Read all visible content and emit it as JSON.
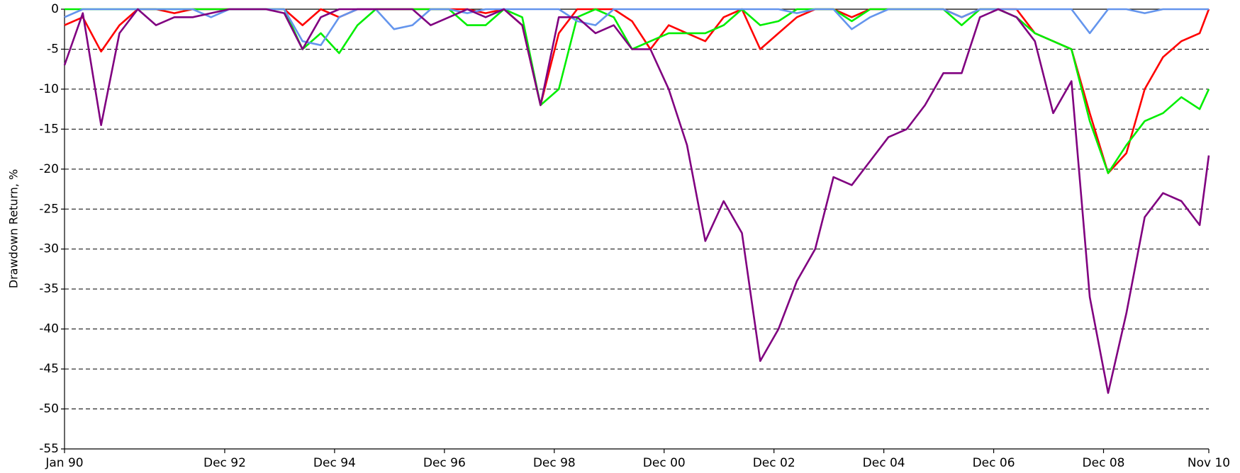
{
  "chart_data": {
    "type": "line",
    "y_label": "Drawdown Return, %",
    "x": [
      "Jan 90",
      "May 90",
      "Sep 90",
      "Jan 91",
      "May 91",
      "Sep 91",
      "Jan 92",
      "May 92",
      "Sep 92",
      "Jan 93",
      "May 93",
      "Sep 93",
      "Jan 94",
      "May 94",
      "Sep 94",
      "Jan 95",
      "May 95",
      "Sep 95",
      "Jan 96",
      "May 96",
      "Sep 96",
      "Jan 97",
      "May 97",
      "Sep 97",
      "Jan 98",
      "May 98",
      "Sep 98",
      "Jan 99",
      "May 99",
      "Sep 99",
      "Jan 00",
      "May 00",
      "Sep 00",
      "Jan 01",
      "May 01",
      "Sep 01",
      "Jan 02",
      "May 02",
      "Sep 02",
      "Jan 03",
      "May 03",
      "Sep 03",
      "Jan 04",
      "May 04",
      "Sep 04",
      "Jan 05",
      "May 05",
      "Sep 05",
      "Jan 06",
      "May 06",
      "Sep 06",
      "Jan 07",
      "May 07",
      "Sep 07",
      "Jan 08",
      "May 08",
      "Sep 08",
      "Jan 09",
      "May 09",
      "Sep 09",
      "Jan 10",
      "May 10",
      "Sep 10",
      "Nov 10"
    ],
    "series": [
      {
        "color": "#ff0000",
        "values": [
          -2,
          -1,
          -5.3,
          -2,
          0,
          0,
          -0.5,
          0,
          0,
          0,
          0,
          0,
          0,
          -2,
          0,
          -1,
          0,
          0,
          0,
          0,
          0,
          0,
          0,
          -0.5,
          0,
          -2,
          -12,
          -3,
          0,
          0,
          0,
          -1.5,
          -5,
          -2,
          -3,
          -4,
          -1,
          0,
          -5,
          -3,
          -1,
          0,
          0,
          -1,
          0,
          0,
          0,
          0,
          0,
          -1,
          0,
          0,
          0,
          -3,
          -4,
          -5,
          -13,
          -20.5,
          -18,
          -10,
          -6,
          -4,
          -3,
          0
        ]
      },
      {
        "color": "#00ee00",
        "values": [
          0,
          0,
          0,
          0,
          0,
          0,
          0,
          0,
          0,
          0,
          0,
          0,
          0,
          -5,
          -3,
          -5.5,
          -2,
          0,
          0,
          0,
          0,
          0,
          -2,
          -2,
          0,
          -1,
          -12,
          -10,
          -1,
          0,
          -1,
          -5,
          -4,
          -3,
          -3,
          -3,
          -2,
          0,
          -2,
          -1.5,
          0,
          0,
          0,
          -1.5,
          0,
          0,
          0,
          0,
          0,
          -2,
          0,
          0,
          -1,
          -3,
          -4,
          -5,
          -14,
          -20.5,
          -17,
          -14,
          -13,
          -11,
          -12.5,
          -10
        ]
      },
      {
        "color": "#6495ed",
        "values": [
          -1,
          0,
          0,
          0,
          0,
          0,
          0,
          0,
          -1,
          0,
          0,
          0,
          0,
          -4,
          -4.5,
          -1,
          0,
          0,
          -2.5,
          -2,
          0,
          0,
          -0.5,
          0,
          0,
          0,
          0,
          0,
          -1.5,
          -2,
          0,
          0,
          0,
          0,
          0,
          0,
          0,
          0,
          0,
          0,
          -0.5,
          0,
          0,
          -2.5,
          -1,
          0,
          0,
          0,
          0,
          -1,
          0,
          0,
          0,
          0,
          0,
          0,
          -3,
          0,
          0,
          -0.5,
          0,
          0,
          0,
          0
        ]
      },
      {
        "color": "#800080",
        "values": [
          -7,
          -0.5,
          -14.5,
          -3,
          0,
          -2,
          -1,
          -1,
          -0.5,
          0,
          0,
          0,
          -0.5,
          -5,
          -1,
          0,
          0,
          0,
          0,
          0,
          -2,
          -1,
          0,
          -1,
          0,
          -2,
          -12,
          -1,
          -1,
          -3,
          -2,
          -5,
          -5,
          -10,
          -17,
          -29,
          -24,
          -28,
          -44,
          -40,
          -34,
          -30,
          -21,
          -22,
          -19,
          -16,
          -15,
          -12,
          -8,
          -8,
          -1,
          0,
          -1,
          -4,
          -13,
          -9,
          -36,
          -48,
          -38,
          -26,
          -23,
          -24,
          -27,
          -18.3
        ]
      }
    ],
    "xlim": [
      "Jan 90",
      "Nov 10"
    ],
    "xticks": [
      "Jan 90",
      "Dec 92",
      "Dec 94",
      "Dec 96",
      "Dec 98",
      "Dec 00",
      "Dec 02",
      "Dec 04",
      "Dec 06",
      "Dec 08",
      "Nov 10"
    ],
    "ylim": [
      -55,
      0
    ],
    "yticks": [
      0,
      -5,
      -10,
      -15,
      -20,
      -25,
      -30,
      -35,
      -40,
      -45,
      -50,
      -55
    ],
    "grid": true
  }
}
